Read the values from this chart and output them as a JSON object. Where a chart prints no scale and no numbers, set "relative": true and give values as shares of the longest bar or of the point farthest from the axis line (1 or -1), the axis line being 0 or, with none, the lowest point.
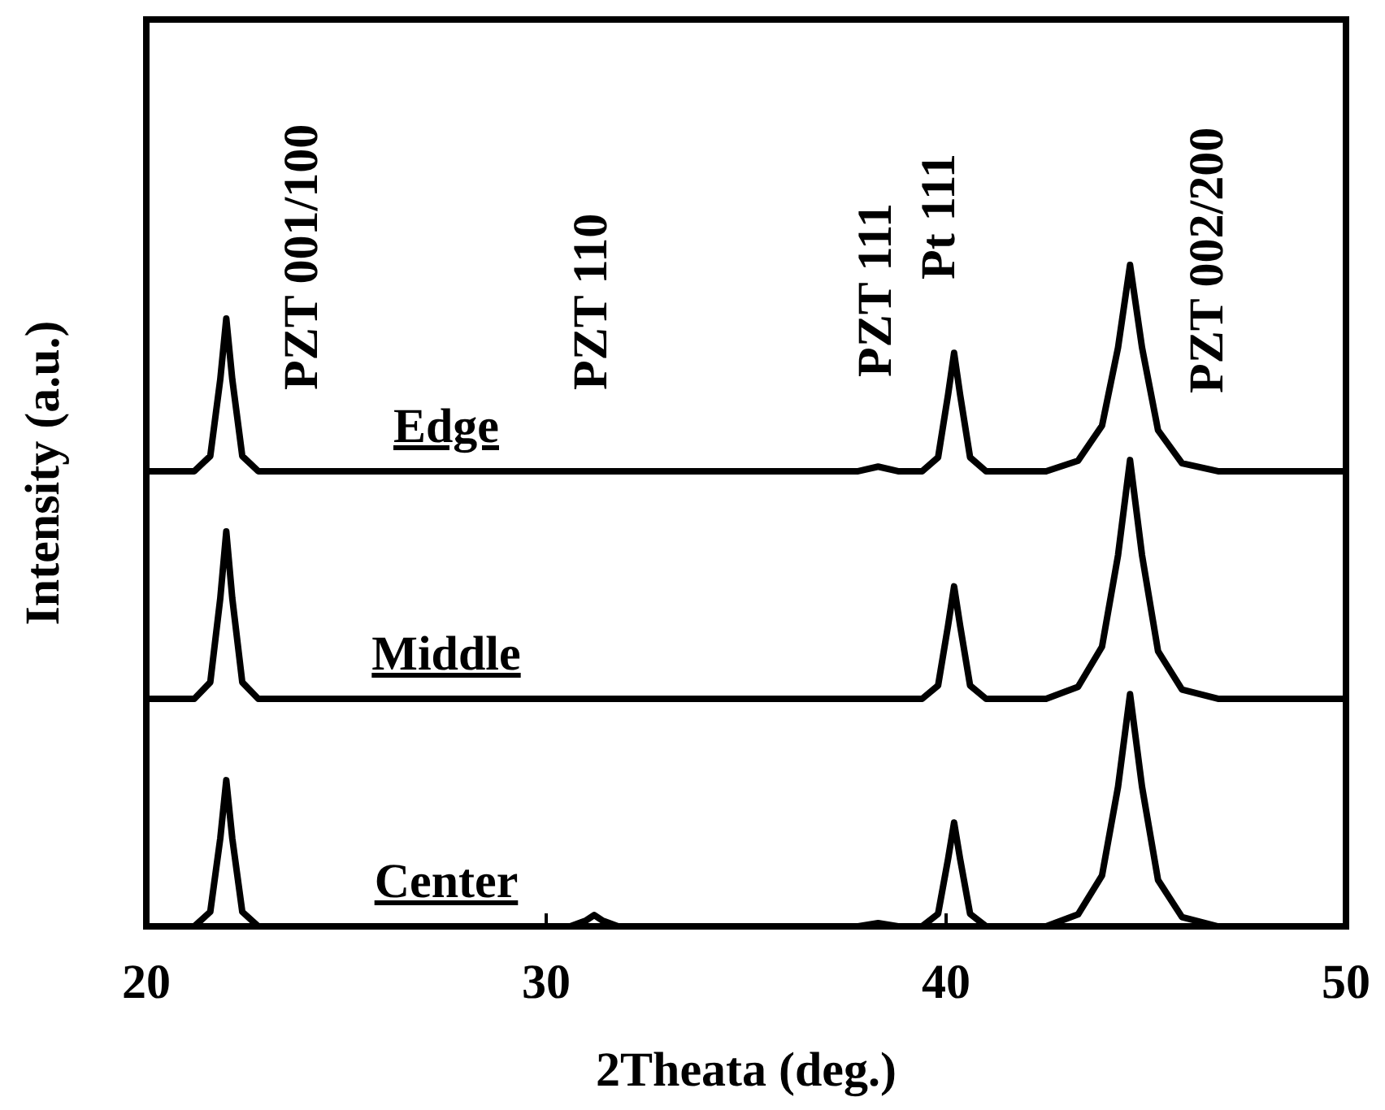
{
  "chart_data": {
    "type": "line",
    "relative": true,
    "xlabel": "2Theata (deg.)",
    "ylabel": "Intensity (a.u.)",
    "xlim": [
      20,
      50
    ],
    "xticks": [
      20,
      30,
      40,
      50
    ],
    "grid": false,
    "marker": "none",
    "line_style": "solid",
    "x": [
      20,
      21.2,
      21.6,
      21.85,
      22.0,
      22.15,
      22.4,
      22.8,
      30.6,
      31.0,
      31.2,
      31.4,
      31.8,
      37.8,
      38.3,
      38.8,
      39.4,
      39.8,
      40.05,
      40.2,
      40.35,
      40.6,
      41.0,
      42.5,
      43.3,
      43.9,
      44.3,
      44.6,
      44.9,
      45.3,
      45.9,
      46.8,
      50
    ],
    "series": [
      {
        "name": "Edge",
        "color": "#000000",
        "values": [
          0.688,
          0.688,
          0.711,
          0.827,
          0.919,
          0.827,
          0.711,
          0.688,
          0.688,
          0.688,
          0.688,
          0.688,
          0.688,
          0.688,
          0.695,
          0.688,
          0.688,
          0.709,
          0.804,
          0.867,
          0.804,
          0.709,
          0.688,
          0.688,
          0.704,
          0.757,
          0.875,
          1.0,
          0.875,
          0.75,
          0.7,
          0.688,
          0.688
        ]
      },
      {
        "name": "Middle",
        "color": "#000000",
        "values": [
          0.344,
          0.344,
          0.369,
          0.496,
          0.597,
          0.496,
          0.369,
          0.344,
          0.344,
          0.344,
          0.344,
          0.344,
          0.344,
          0.344,
          0.344,
          0.344,
          0.344,
          0.364,
          0.455,
          0.514,
          0.455,
          0.364,
          0.344,
          0.344,
          0.362,
          0.423,
          0.561,
          0.705,
          0.561,
          0.416,
          0.358,
          0.344,
          0.344
        ]
      },
      {
        "name": "Center",
        "color": "#000000",
        "values": [
          0,
          0,
          0.022,
          0.133,
          0.221,
          0.133,
          0.022,
          0,
          0,
          0.009,
          0.017,
          0.009,
          0,
          0,
          0.005,
          0,
          0,
          0.019,
          0.102,
          0.157,
          0.102,
          0.019,
          0,
          0,
          0.018,
          0.077,
          0.211,
          0.351,
          0.211,
          0.07,
          0.014,
          0,
          0
        ]
      }
    ],
    "annotations": [
      "PZT 001/100",
      "PZT 110",
      "PZT 111",
      "Pt 111",
      "PZT 002/200"
    ]
  }
}
